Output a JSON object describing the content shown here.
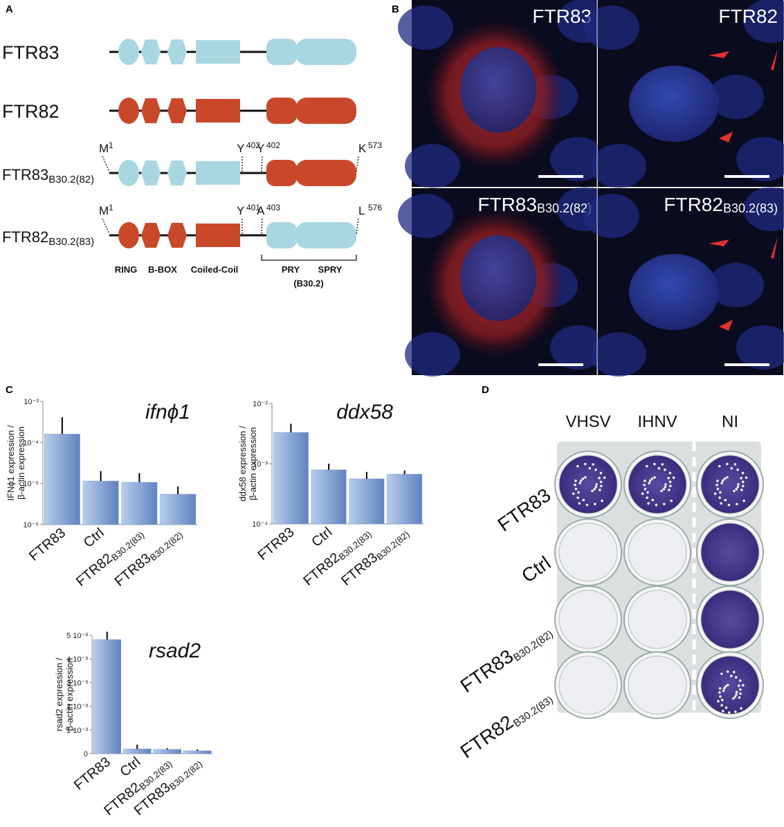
{
  "panels": {
    "a": "A",
    "b": "B",
    "c": "C",
    "d": "D"
  },
  "panel_a": {
    "proteins": [
      {
        "name": "FTR83"
      },
      {
        "name": "FTR82"
      },
      {
        "name": "FTR83B30.2(82)",
        "residues": [
          {
            "aa": "M",
            "pos": "1"
          },
          {
            "aa": "Y",
            "pos": "402"
          },
          {
            "aa": "Y",
            "pos": "402"
          },
          {
            "aa": "K",
            "pos": "573"
          }
        ]
      },
      {
        "name": "FTR82B30.2(83)",
        "residues": [
          {
            "aa": "M",
            "pos": "1"
          },
          {
            "aa": "Y",
            "pos": "401"
          },
          {
            "aa": "A",
            "pos": "403"
          },
          {
            "aa": "L",
            "pos": "576"
          }
        ]
      }
    ],
    "domains": [
      "RING",
      "B-BOX",
      "Coiled-Coil",
      "PRY",
      "SPRY"
    ],
    "b30_label": "(B30.2)"
  },
  "panel_b": {
    "images": [
      "FTR83",
      "FTR82",
      "FTR83B30.2(82)",
      "FTR82B30.2(83)"
    ]
  },
  "chart_data": [
    {
      "type": "bar",
      "title": "ifnϕ1",
      "y_label": [
        "IFNϕ1 expression /",
        "β-actin expression"
      ],
      "categories": [
        "FTR83",
        "Ctrl",
        "FTR82B30.2(83)",
        "FTR83B30.2(82)"
      ],
      "values": [
        0.00016,
        1.15e-05,
        1.07e-05,
        5.5e-06
      ],
      "errors": [
        0.00025,
        8.5e-06,
        7.3e-06,
        3e-06
      ],
      "color": "#7a9bd0",
      "log": true,
      "ylim": [
        1e-06,
        0.001
      ],
      "yticks": [
        {
          "value": 1e-06,
          "label": "10⁻⁶"
        },
        {
          "value": 1e-05,
          "label": "10⁻⁵"
        },
        {
          "value": 0.0001,
          "label": "10⁻⁴"
        },
        {
          "value": 0.001,
          "label": "10⁻³"
        }
      ]
    },
    {
      "type": "bar",
      "title": "ddx58",
      "y_label": [
        "ddx58 expression /",
        "β-actin expression"
      ],
      "categories": [
        "FTR83",
        "Ctrl",
        "FTR82B30.2(83)",
        "FTR83B30.2(82)"
      ],
      "values": [
        0.0033,
        0.00079,
        0.00056,
        0.00067
      ],
      "errors": [
        0.0013,
        0.00021,
        0.00017,
        0.0001
      ],
      "color": "#7a9bd0",
      "log": true,
      "ylim": [
        0.0001,
        0.01
      ],
      "yticks": [
        {
          "value": 0.0001,
          "label": "10⁻⁴"
        },
        {
          "value": 0.001,
          "label": "10⁻³"
        },
        {
          "value": 0.01,
          "label": "10⁻²"
        }
      ]
    },
    {
      "type": "bar",
      "title": "rsad2",
      "y_label": [
        "rsad2 expression /",
        "β-actin expression"
      ],
      "categories": [
        "FTR83",
        "Ctrl",
        "FTR82B30.2(83)",
        "FTR83B30.2(82)"
      ],
      "values": [
        0.00482,
        0.0002,
        0.00018,
        0.00012
      ],
      "errors": [
        0.00033,
        0.00018,
        5e-05,
        6e-05
      ],
      "color": "#7a9bd0",
      "log": false,
      "ylim": [
        0,
        0.005
      ],
      "yticks": [
        0,
        {
          "value": 0.001,
          "label": "1 10⁻³"
        },
        {
          "value": 0.002,
          "label": "2 10⁻³"
        },
        {
          "value": 0.003,
          "label": "3 10⁻³"
        },
        {
          "value": 0.004,
          "label": "4 10⁻³"
        },
        {
          "value": 0.005,
          "label": "5 10⁻³"
        }
      ]
    }
  ],
  "panel_d": {
    "columns": [
      "VHSV",
      "IHNV",
      "NI"
    ],
    "rows": [
      "FTR83",
      "Ctrl",
      "FTR83B30.2(82)",
      "FTR82B30.2(83)"
    ]
  }
}
